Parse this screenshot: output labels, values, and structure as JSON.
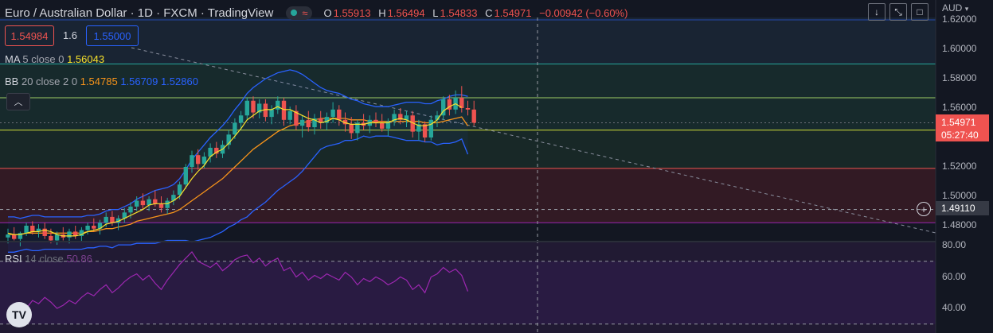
{
  "header": {
    "title": "Euro / Australian Dollar · 1D · FXCM · TradingView",
    "approx_icon": "≈",
    "open_label": "O",
    "open": "1.55913",
    "high_label": "H",
    "high": "1.56494",
    "low_label": "L",
    "low": "1.54833",
    "close_label": "C",
    "close": "1.54971",
    "change": "−0.00942 (−0.60%)"
  },
  "order": {
    "sell": "1.54984",
    "spread": "1.6",
    "buy": "1.55000"
  },
  "legends": {
    "ma_name": "MA",
    "ma_params": "5 close 0",
    "ma_value": "1.56043",
    "bb_name": "BB",
    "bb_params": "20 close 2 0",
    "bb_basis": "1.54785",
    "bb_upper": "1.56709",
    "bb_lower": "1.52860",
    "rsi_name": "RSI",
    "rsi_params": "14 close",
    "rsi_value": "50.86"
  },
  "toolbar": {
    "currency": "AUD",
    "buttons": [
      "down-arrow-icon",
      "collapse-arrows-icon",
      "maximize-icon"
    ]
  },
  "price_axis": {
    "ticks": [
      "1.62000",
      "1.60000",
      "1.58000",
      "1.56000",
      "1.52000",
      "1.50000",
      "1.48000"
    ],
    "current_price": "1.54971",
    "countdown": "05:27:40",
    "crosshair_price": "1.49110"
  },
  "rsi_axis": {
    "ticks": [
      "80.00",
      "60.00",
      "40.00"
    ]
  },
  "colors": {
    "bg": "#131722",
    "up": "#26a69a",
    "down": "#ef5350",
    "ma": "#f7e22b",
    "bb_basis": "#f7931a",
    "bb_band": "#2962ff",
    "rsi": "#9c27b0",
    "accent": "#2962ff"
  },
  "chart_data": [
    {
      "type": "candlestick",
      "title": "Euro / Australian Dollar · 1D · FXCM",
      "ylim": [
        1.47,
        1.625
      ],
      "y_ticks": [
        1.62,
        1.6,
        1.58,
        1.56,
        1.52,
        1.5,
        1.48
      ],
      "horizontal_levels": [
        1.59,
        1.567,
        1.545,
        1.519,
        1.491,
        1.482
      ],
      "candles": [
        {
          "o": 1.472,
          "h": 1.478,
          "l": 1.468,
          "c": 1.474
        },
        {
          "o": 1.474,
          "h": 1.479,
          "l": 1.47,
          "c": 1.471
        },
        {
          "o": 1.471,
          "h": 1.476,
          "l": 1.466,
          "c": 1.475
        },
        {
          "o": 1.475,
          "h": 1.482,
          "l": 1.473,
          "c": 1.48
        },
        {
          "o": 1.48,
          "h": 1.483,
          "l": 1.474,
          "c": 1.476
        },
        {
          "o": 1.476,
          "h": 1.481,
          "l": 1.472,
          "c": 1.478
        },
        {
          "o": 1.478,
          "h": 1.482,
          "l": 1.471,
          "c": 1.473
        },
        {
          "o": 1.473,
          "h": 1.478,
          "l": 1.468,
          "c": 1.47
        },
        {
          "o": 1.47,
          "h": 1.476,
          "l": 1.467,
          "c": 1.474
        },
        {
          "o": 1.474,
          "h": 1.479,
          "l": 1.47,
          "c": 1.472
        },
        {
          "o": 1.472,
          "h": 1.478,
          "l": 1.468,
          "c": 1.476
        },
        {
          "o": 1.476,
          "h": 1.48,
          "l": 1.471,
          "c": 1.473
        },
        {
          "o": 1.473,
          "h": 1.479,
          "l": 1.469,
          "c": 1.477
        },
        {
          "o": 1.477,
          "h": 1.482,
          "l": 1.474,
          "c": 1.48
        },
        {
          "o": 1.48,
          "h": 1.485,
          "l": 1.476,
          "c": 1.478
        },
        {
          "o": 1.478,
          "h": 1.484,
          "l": 1.474,
          "c": 1.482
        },
        {
          "o": 1.482,
          "h": 1.489,
          "l": 1.479,
          "c": 1.486
        },
        {
          "o": 1.486,
          "h": 1.49,
          "l": 1.48,
          "c": 1.482
        },
        {
          "o": 1.482,
          "h": 1.487,
          "l": 1.477,
          "c": 1.485
        },
        {
          "o": 1.485,
          "h": 1.492,
          "l": 1.482,
          "c": 1.489
        },
        {
          "o": 1.489,
          "h": 1.496,
          "l": 1.485,
          "c": 1.493
        },
        {
          "o": 1.493,
          "h": 1.5,
          "l": 1.49,
          "c": 1.497
        },
        {
          "o": 1.497,
          "h": 1.502,
          "l": 1.491,
          "c": 1.494
        },
        {
          "o": 1.494,
          "h": 1.5,
          "l": 1.49,
          "c": 1.498
        },
        {
          "o": 1.498,
          "h": 1.504,
          "l": 1.493,
          "c": 1.495
        },
        {
          "o": 1.495,
          "h": 1.5,
          "l": 1.489,
          "c": 1.492
        },
        {
          "o": 1.492,
          "h": 1.499,
          "l": 1.488,
          "c": 1.497
        },
        {
          "o": 1.497,
          "h": 1.504,
          "l": 1.494,
          "c": 1.501
        },
        {
          "o": 1.501,
          "h": 1.51,
          "l": 1.498,
          "c": 1.508
        },
        {
          "o": 1.508,
          "h": 1.522,
          "l": 1.505,
          "c": 1.52
        },
        {
          "o": 1.52,
          "h": 1.531,
          "l": 1.516,
          "c": 1.528
        },
        {
          "o": 1.528,
          "h": 1.532,
          "l": 1.518,
          "c": 1.522
        },
        {
          "o": 1.522,
          "h": 1.53,
          "l": 1.519,
          "c": 1.527
        },
        {
          "o": 1.527,
          "h": 1.536,
          "l": 1.523,
          "c": 1.533
        },
        {
          "o": 1.533,
          "h": 1.537,
          "l": 1.526,
          "c": 1.529
        },
        {
          "o": 1.529,
          "h": 1.538,
          "l": 1.526,
          "c": 1.535
        },
        {
          "o": 1.535,
          "h": 1.545,
          "l": 1.532,
          "c": 1.542
        },
        {
          "o": 1.542,
          "h": 1.553,
          "l": 1.539,
          "c": 1.55
        },
        {
          "o": 1.55,
          "h": 1.558,
          "l": 1.545,
          "c": 1.555
        },
        {
          "o": 1.555,
          "h": 1.567,
          "l": 1.552,
          "c": 1.565
        },
        {
          "o": 1.565,
          "h": 1.568,
          "l": 1.553,
          "c": 1.557
        },
        {
          "o": 1.557,
          "h": 1.566,
          "l": 1.553,
          "c": 1.563
        },
        {
          "o": 1.563,
          "h": 1.566,
          "l": 1.551,
          "c": 1.554
        },
        {
          "o": 1.554,
          "h": 1.562,
          "l": 1.549,
          "c": 1.559
        },
        {
          "o": 1.559,
          "h": 1.568,
          "l": 1.556,
          "c": 1.565
        },
        {
          "o": 1.565,
          "h": 1.567,
          "l": 1.548,
          "c": 1.552
        },
        {
          "o": 1.552,
          "h": 1.561,
          "l": 1.549,
          "c": 1.558
        },
        {
          "o": 1.558,
          "h": 1.562,
          "l": 1.545,
          "c": 1.548
        },
        {
          "o": 1.548,
          "h": 1.555,
          "l": 1.54,
          "c": 1.552
        },
        {
          "o": 1.552,
          "h": 1.558,
          "l": 1.544,
          "c": 1.547
        },
        {
          "o": 1.547,
          "h": 1.556,
          "l": 1.542,
          "c": 1.553
        },
        {
          "o": 1.553,
          "h": 1.558,
          "l": 1.546,
          "c": 1.55
        },
        {
          "o": 1.55,
          "h": 1.557,
          "l": 1.545,
          "c": 1.554
        },
        {
          "o": 1.554,
          "h": 1.564,
          "l": 1.55,
          "c": 1.559
        },
        {
          "o": 1.559,
          "h": 1.562,
          "l": 1.548,
          "c": 1.552
        },
        {
          "o": 1.552,
          "h": 1.557,
          "l": 1.544,
          "c": 1.549
        },
        {
          "o": 1.549,
          "h": 1.554,
          "l": 1.539,
          "c": 1.543
        },
        {
          "o": 1.543,
          "h": 1.552,
          "l": 1.538,
          "c": 1.55
        },
        {
          "o": 1.55,
          "h": 1.556,
          "l": 1.545,
          "c": 1.548
        },
        {
          "o": 1.548,
          "h": 1.555,
          "l": 1.543,
          "c": 1.552
        },
        {
          "o": 1.552,
          "h": 1.557,
          "l": 1.547,
          "c": 1.55
        },
        {
          "o": 1.55,
          "h": 1.556,
          "l": 1.544,
          "c": 1.546
        },
        {
          "o": 1.546,
          "h": 1.553,
          "l": 1.541,
          "c": 1.551
        },
        {
          "o": 1.551,
          "h": 1.559,
          "l": 1.548,
          "c": 1.556
        },
        {
          "o": 1.556,
          "h": 1.56,
          "l": 1.549,
          "c": 1.552
        },
        {
          "o": 1.552,
          "h": 1.558,
          "l": 1.547,
          "c": 1.555
        },
        {
          "o": 1.555,
          "h": 1.558,
          "l": 1.54,
          "c": 1.544
        },
        {
          "o": 1.544,
          "h": 1.552,
          "l": 1.538,
          "c": 1.549
        },
        {
          "o": 1.549,
          "h": 1.551,
          "l": 1.537,
          "c": 1.54
        },
        {
          "o": 1.54,
          "h": 1.555,
          "l": 1.538,
          "c": 1.552
        },
        {
          "o": 1.552,
          "h": 1.558,
          "l": 1.547,
          "c": 1.555
        },
        {
          "o": 1.555,
          "h": 1.568,
          "l": 1.552,
          "c": 1.566
        },
        {
          "o": 1.566,
          "h": 1.569,
          "l": 1.555,
          "c": 1.559
        },
        {
          "o": 1.559,
          "h": 1.572,
          "l": 1.556,
          "c": 1.567
        },
        {
          "o": 1.567,
          "h": 1.575,
          "l": 1.557,
          "c": 1.56
        },
        {
          "o": 1.56,
          "h": 1.565,
          "l": 1.555,
          "c": 1.559
        },
        {
          "o": 1.559,
          "h": 1.565,
          "l": 1.548,
          "c": 1.55
        }
      ],
      "bollinger": {
        "upper": [
          1.486,
          1.486,
          1.485,
          1.486,
          1.487,
          1.487,
          1.486,
          1.486,
          1.486,
          1.486,
          1.486,
          1.486,
          1.486,
          1.487,
          1.487,
          1.488,
          1.49,
          1.491,
          1.491,
          1.493,
          1.495,
          1.498,
          1.5,
          1.502,
          1.504,
          1.505,
          1.506,
          1.508,
          1.512,
          1.518,
          1.525,
          1.53,
          1.535,
          1.54,
          1.544,
          1.548,
          1.553,
          1.559,
          1.564,
          1.57,
          1.574,
          1.577,
          1.58,
          1.582,
          1.584,
          1.585,
          1.586,
          1.585,
          1.583,
          1.58,
          1.577,
          1.574,
          1.572,
          1.571,
          1.57,
          1.568,
          1.566,
          1.565,
          1.563,
          1.562,
          1.561,
          1.561,
          1.561,
          1.562,
          1.563,
          1.564,
          1.564,
          1.564,
          1.563,
          1.563,
          1.565,
          1.566,
          1.568,
          1.569,
          1.569,
          1.568
        ],
        "middle": [
          1.474,
          1.474,
          1.474,
          1.475,
          1.475,
          1.475,
          1.475,
          1.475,
          1.475,
          1.475,
          1.475,
          1.475,
          1.475,
          1.476,
          1.476,
          1.477,
          1.478,
          1.478,
          1.479,
          1.48,
          1.481,
          1.483,
          1.484,
          1.485,
          1.486,
          1.487,
          1.488,
          1.489,
          1.491,
          1.494,
          1.497,
          1.5,
          1.503,
          1.506,
          1.509,
          1.512,
          1.516,
          1.52,
          1.524,
          1.528,
          1.532,
          1.535,
          1.538,
          1.541,
          1.544,
          1.546,
          1.548,
          1.549,
          1.55,
          1.551,
          1.552,
          1.553,
          1.553,
          1.553,
          1.553,
          1.553,
          1.552,
          1.552,
          1.552,
          1.551,
          1.551,
          1.551,
          1.551,
          1.551,
          1.551,
          1.551,
          1.551,
          1.551,
          1.55,
          1.55,
          1.55,
          1.551,
          1.552,
          1.553,
          1.554,
          1.5479
        ],
        "lower": [
          1.462,
          1.462,
          1.463,
          1.464,
          1.463,
          1.463,
          1.464,
          1.464,
          1.464,
          1.464,
          1.464,
          1.464,
          1.464,
          1.465,
          1.465,
          1.466,
          1.466,
          1.465,
          1.467,
          1.467,
          1.467,
          1.468,
          1.468,
          1.468,
          1.468,
          1.469,
          1.47,
          1.47,
          1.47,
          1.47,
          1.469,
          1.47,
          1.471,
          1.472,
          1.474,
          1.476,
          1.479,
          1.481,
          1.484,
          1.486,
          1.49,
          1.493,
          1.496,
          1.5,
          1.504,
          1.507,
          1.51,
          1.513,
          1.517,
          1.522,
          1.527,
          1.532,
          1.534,
          1.535,
          1.536,
          1.538,
          1.538,
          1.539,
          1.541,
          1.54,
          1.541,
          1.541,
          1.541,
          1.54,
          1.539,
          1.538,
          1.538,
          1.538,
          1.537,
          1.537,
          1.535,
          1.536,
          1.536,
          1.537,
          1.539,
          1.5286
        ]
      },
      "ma5": [
        1.475,
        1.474,
        1.474,
        1.475,
        1.476,
        1.476,
        1.477,
        1.476,
        1.474,
        1.473,
        1.473,
        1.473,
        1.474,
        1.476,
        1.477,
        1.478,
        1.481,
        1.482,
        1.483,
        1.485,
        1.487,
        1.489,
        1.491,
        1.494,
        1.495,
        1.495,
        1.495,
        1.497,
        1.5,
        1.506,
        1.512,
        1.517,
        1.521,
        1.527,
        1.53,
        1.532,
        1.536,
        1.541,
        1.546,
        1.552,
        1.555,
        1.558,
        1.559,
        1.559,
        1.561,
        1.559,
        1.559,
        1.557,
        1.555,
        1.553,
        1.552,
        1.55,
        1.551,
        1.553,
        1.552,
        1.55,
        1.549,
        1.549,
        1.549,
        1.55,
        1.55,
        1.55,
        1.55,
        1.552,
        1.553,
        1.552,
        1.55,
        1.548,
        1.548,
        1.549,
        1.552,
        1.558,
        1.561,
        1.563,
        1.5604
      ]
    },
    {
      "type": "line",
      "title": "RSI 14 close",
      "ylim": [
        30,
        85
      ],
      "y_ticks": [
        80,
        60,
        40
      ],
      "levels": [
        70,
        30
      ],
      "values": [
        35,
        38,
        42,
        40,
        45,
        43,
        47,
        44,
        40,
        42,
        45,
        43,
        47,
        50,
        48,
        52,
        55,
        50,
        53,
        57,
        60,
        62,
        58,
        61,
        56,
        52,
        58,
        63,
        68,
        72,
        76,
        70,
        68,
        66,
        69,
        64,
        67,
        71,
        73,
        74,
        69,
        72,
        67,
        70,
        72,
        64,
        66,
        60,
        63,
        58,
        61,
        59,
        62,
        60,
        58,
        63,
        60,
        55,
        59,
        57,
        60,
        58,
        55,
        57,
        60,
        58,
        52,
        55,
        50,
        60,
        62,
        66,
        63,
        65,
        61,
        50.86
      ]
    }
  ]
}
